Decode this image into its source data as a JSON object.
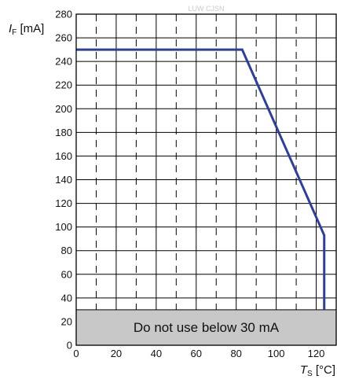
{
  "chart_data": {
    "type": "line",
    "title": "",
    "watermark": "LUW CJSN",
    "xlabel": {
      "symbol": "T",
      "subscript": "S",
      "unit": " [°C]"
    },
    "ylabel": {
      "symbol": "I",
      "subscript": "F",
      "unit": " [mA]"
    },
    "xlim": [
      0,
      130
    ],
    "ylim": [
      0,
      280
    ],
    "x_ticks": [
      0,
      20,
      40,
      60,
      80,
      100,
      120
    ],
    "y_ticks": [
      0,
      20,
      40,
      60,
      80,
      100,
      120,
      140,
      160,
      180,
      200,
      220,
      240,
      260,
      280
    ],
    "x_solid_gridlines": [
      20,
      40,
      60,
      80,
      100,
      120
    ],
    "x_dashed_gridlines": [
      10,
      30,
      50,
      70,
      90,
      110
    ],
    "grid": true,
    "series": [
      {
        "x": [
          0,
          83,
          124,
          124
        ],
        "y": [
          250,
          250,
          93,
          30
        ],
        "color": "#2d3f9e"
      }
    ],
    "restricted_region": {
      "y_from": 0,
      "y_to": 30,
      "label": "Do not use below 30 mA",
      "color": "#c8c8c8"
    }
  }
}
